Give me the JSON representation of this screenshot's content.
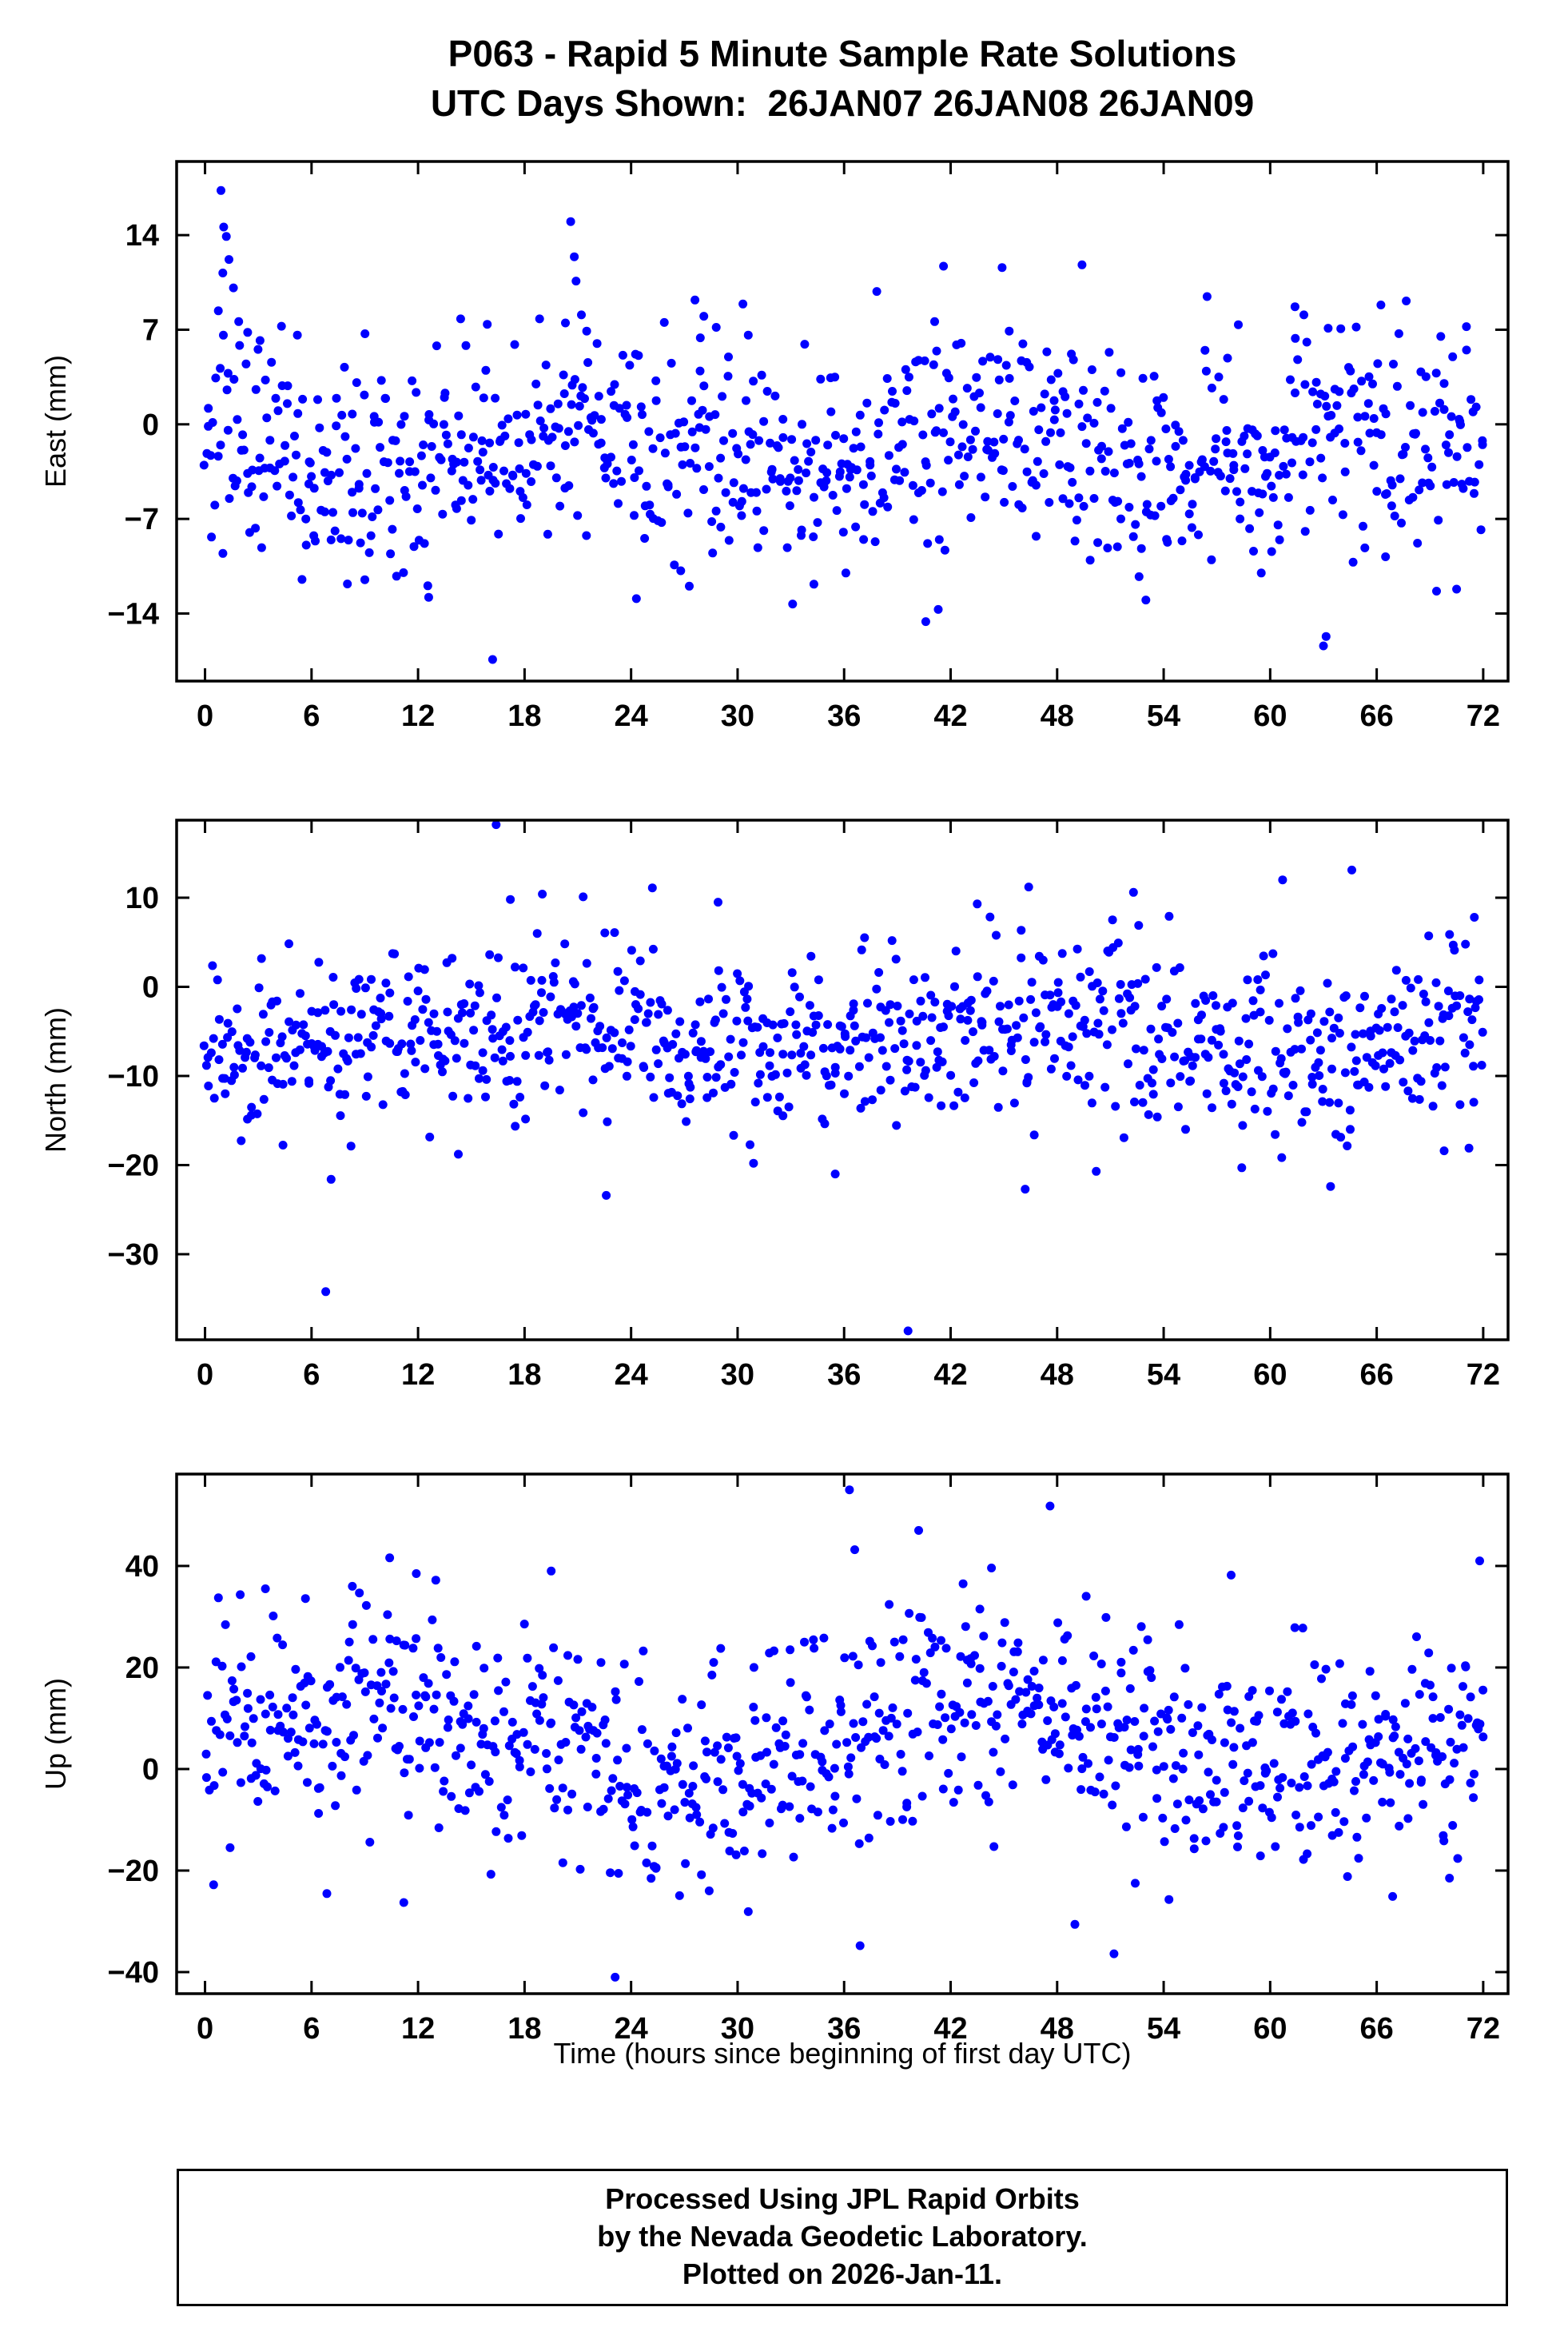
{
  "page": {
    "background": "#ffffff",
    "text_color": "#000000",
    "point_color": "#0000ff",
    "title_line1": "P063 - Rapid 5 Minute Sample Rate Solutions",
    "title_line2": "UTC Days Shown:  26JAN07 26JAN08 26JAN09",
    "xlabel": "Time (hours since beginning of first day UTC)",
    "footer": {
      "line1": "Processed Using JPL Rapid Orbits",
      "line2": "by the Nevada Geodetic Laboratory.",
      "line3": "Plotted on 2026-Jan-11."
    }
  },
  "chart_data": [
    {
      "type": "scatter",
      "name": "east",
      "ylabel": "East (mm)",
      "xlabel": "",
      "legend": "none",
      "grid": false,
      "xlim": [
        -1.6,
        73.4
      ],
      "ylim": [
        -19.0,
        19.45
      ],
      "x_ticks": [
        0,
        6,
        12,
        18,
        24,
        30,
        36,
        42,
        48,
        54,
        60,
        66,
        72
      ],
      "y_ticks": [
        -14,
        -7,
        0,
        7,
        14
      ],
      "marker": {
        "shape": "circle",
        "color": "#0000ff",
        "radius_px": 5.5
      },
      "sampling": {
        "n": 860,
        "x_start": 0,
        "x_end": 72,
        "seed": 101,
        "mean": -1.8,
        "std": 3.9,
        "clip": [
          -13.0,
          10.0
        ],
        "wave_amp": 1.6,
        "wave_period": 22,
        "wave_peak_x": 21
      },
      "outlier_points": [
        [
          0.9,
          17.3
        ],
        [
          1.05,
          14.6
        ],
        [
          1.2,
          13.9
        ],
        [
          1.35,
          12.2
        ],
        [
          1.0,
          11.2
        ],
        [
          1.6,
          10.1
        ],
        [
          0.75,
          8.4
        ],
        [
          1.9,
          7.6
        ],
        [
          2.4,
          6.8
        ],
        [
          3.1,
          6.2
        ],
        [
          5.2,
          6.6
        ],
        [
          14.4,
          7.8
        ],
        [
          15.9,
          7.4
        ],
        [
          20.6,
          15.0
        ],
        [
          20.8,
          12.4
        ],
        [
          20.9,
          10.6
        ],
        [
          21.2,
          8.1
        ],
        [
          20.3,
          7.5
        ],
        [
          21.5,
          6.9
        ],
        [
          27.6,
          9.2
        ],
        [
          28.1,
          8.0
        ],
        [
          27.9,
          6.4
        ],
        [
          30.3,
          8.9
        ],
        [
          30.6,
          6.6
        ],
        [
          41.6,
          11.7
        ],
        [
          41.1,
          7.6
        ],
        [
          44.9,
          11.6
        ],
        [
          45.3,
          6.9
        ],
        [
          49.4,
          11.8
        ],
        [
          48.8,
          5.2
        ],
        [
          57.6,
          4.9
        ],
        [
          61.4,
          8.7
        ],
        [
          61.9,
          8.1
        ],
        [
          16.2,
          -17.4
        ],
        [
          63.0,
          -16.4
        ],
        [
          63.15,
          -15.7
        ],
        [
          40.6,
          -14.6
        ],
        [
          41.3,
          -13.7
        ],
        [
          33.1,
          -13.3
        ],
        [
          24.3,
          -12.9
        ],
        [
          12.6,
          -12.8
        ],
        [
          53.0,
          -13.0
        ],
        [
          36.1,
          -11.0
        ],
        [
          9.0,
          -11.5
        ],
        [
          70.5,
          -12.2
        ],
        [
          59.5,
          -11.0
        ],
        [
          66.5,
          -9.8
        ]
      ]
    },
    {
      "type": "scatter",
      "name": "north",
      "ylabel": "North (mm)",
      "xlabel": "",
      "legend": "none",
      "grid": false,
      "xlim": [
        -1.6,
        73.4
      ],
      "ylim": [
        -39.6,
        18.7
      ],
      "x_ticks": [
        0,
        6,
        12,
        18,
        24,
        30,
        36,
        42,
        48,
        54,
        60,
        66,
        72
      ],
      "y_ticks": [
        -30,
        -20,
        -10,
        0,
        10
      ],
      "marker": {
        "shape": "circle",
        "color": "#0000ff",
        "radius_px": 5.5
      },
      "sampling": {
        "n": 860,
        "x_start": 0,
        "x_end": 72,
        "seed": 202,
        "mean": -5.5,
        "std": 4.8,
        "clip": [
          -19.5,
          9.0
        ],
        "wave_amp": 1.5,
        "wave_period": 30,
        "wave_peak_x": 17
      },
      "outlier_points": [
        [
          16.4,
          18.2
        ],
        [
          64.6,
          13.1
        ],
        [
          60.7,
          12.0
        ],
        [
          46.4,
          11.2
        ],
        [
          25.2,
          11.1
        ],
        [
          52.3,
          10.6
        ],
        [
          19.0,
          10.4
        ],
        [
          21.3,
          10.1
        ],
        [
          17.2,
          9.8
        ],
        [
          28.9,
          9.5
        ],
        [
          43.5,
          9.3
        ],
        [
          71.5,
          7.8
        ],
        [
          6.8,
          -34.2
        ],
        [
          39.6,
          -38.6
        ],
        [
          22.6,
          -23.4
        ],
        [
          46.2,
          -22.7
        ],
        [
          63.4,
          -22.4
        ],
        [
          7.1,
          -21.6
        ],
        [
          35.5,
          -21.0
        ],
        [
          50.2,
          -20.7
        ],
        [
          58.4,
          -20.3
        ],
        [
          30.9,
          -19.8
        ],
        [
          69.8,
          -18.4
        ],
        [
          71.2,
          -18.1
        ]
      ]
    },
    {
      "type": "scatter",
      "name": "up",
      "ylabel": "Up (mm)",
      "xlabel": "Time (hours since beginning of first day UTC)",
      "legend": "none",
      "grid": false,
      "xlim": [
        -1.6,
        73.4
      ],
      "ylim": [
        -44.25,
        58.1
      ],
      "x_ticks": [
        0,
        6,
        12,
        18,
        24,
        30,
        36,
        42,
        48,
        54,
        60,
        66,
        72
      ],
      "y_ticks": [
        -40,
        -20,
        0,
        20,
        40
      ],
      "marker": {
        "shape": "circle",
        "color": "#0000ff",
        "radius_px": 5.5
      },
      "sampling": {
        "n": 860,
        "x_start": 0,
        "x_end": 72,
        "seed": 303,
        "mean": 6.0,
        "std": 11.0,
        "clip": [
          -25.0,
          35.0
        ],
        "wave_amp": 6.0,
        "wave_period": 36,
        "wave_peak_x": 8
      },
      "outlier_points": [
        [
          36.3,
          55.0
        ],
        [
          47.6,
          51.8
        ],
        [
          40.2,
          47.0
        ],
        [
          36.6,
          43.2
        ],
        [
          10.4,
          41.6
        ],
        [
          71.8,
          41.0
        ],
        [
          44.3,
          39.6
        ],
        [
          19.5,
          39.0
        ],
        [
          57.8,
          38.2
        ],
        [
          11.9,
          38.5
        ],
        [
          13.0,
          37.2
        ],
        [
          8.3,
          36.0
        ],
        [
          42.7,
          36.5
        ],
        [
          3.4,
          35.5
        ],
        [
          23.1,
          -41.0
        ],
        [
          51.2,
          -36.4
        ],
        [
          36.9,
          -34.8
        ],
        [
          49.0,
          -30.6
        ],
        [
          30.6,
          -28.1
        ],
        [
          11.2,
          -26.3
        ],
        [
          54.3,
          -25.7
        ],
        [
          66.9,
          -25.1
        ],
        [
          52.4,
          -22.5
        ],
        [
          28.4,
          -24.0
        ],
        [
          70.1,
          -21.5
        ]
      ]
    }
  ]
}
